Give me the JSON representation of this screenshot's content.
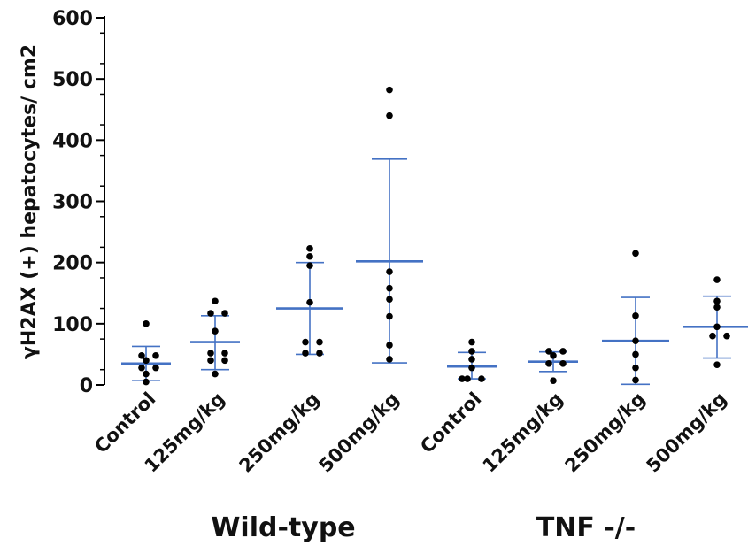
{
  "chart_data": {
    "type": "scatter",
    "ylabel": "γH2AX (+) hepatocytes/ cm2",
    "ylim": [
      0,
      600
    ],
    "yticks": [
      "0",
      "100",
      "200",
      "300",
      "400",
      "500",
      "600"
    ],
    "colors": {
      "mean_bar": "#4472c4",
      "points": "#000000",
      "axis": "#000000"
    },
    "groups": [
      {
        "label": "Wild-type",
        "categories": [
          "Control",
          "125mg/kg",
          "250mg/kg",
          "500mg/kg"
        ]
      },
      {
        "label": "TNF -/-",
        "categories": [
          "Control",
          "125mg/kg",
          "250mg/kg",
          "500mg/kg"
        ]
      }
    ],
    "series": [
      {
        "group": "Wild-type",
        "category": "Control",
        "points": [
          100,
          48,
          48,
          40,
          28,
          28,
          18,
          5
        ],
        "mean": 35,
        "sd_low": 7,
        "sd_high": 63
      },
      {
        "group": "Wild-type",
        "category": "125mg/kg",
        "points": [
          137,
          117,
          117,
          88,
          52,
          52,
          40,
          40,
          18
        ],
        "mean": 70,
        "sd_low": 25,
        "sd_high": 113
      },
      {
        "group": "Wild-type",
        "category": "250mg/kg",
        "points": [
          223,
          210,
          195,
          135,
          70,
          70,
          52,
          52
        ],
        "mean": 125,
        "sd_low": 50,
        "sd_high": 200
      },
      {
        "group": "Wild-type",
        "category": "500mg/kg",
        "points": [
          482,
          440,
          185,
          158,
          140,
          112,
          65,
          42
        ],
        "mean": 202,
        "sd_low": 36,
        "sd_high": 369
      },
      {
        "group": "TNF -/-",
        "category": "Control",
        "points": [
          70,
          55,
          42,
          28,
          10,
          10,
          10
        ],
        "mean": 30,
        "sd_low": 10,
        "sd_high": 53
      },
      {
        "group": "TNF -/-",
        "category": "125mg/kg",
        "points": [
          55,
          55,
          48,
          35,
          35,
          7
        ],
        "mean": 38,
        "sd_low": 22,
        "sd_high": 54
      },
      {
        "group": "TNF -/-",
        "category": "250mg/kg",
        "points": [
          215,
          113,
          72,
          50,
          28,
          8
        ],
        "mean": 72,
        "sd_low": 1,
        "sd_high": 143
      },
      {
        "group": "TNF -/-",
        "category": "500mg/kg",
        "points": [
          172,
          137,
          127,
          95,
          80,
          80,
          33
        ],
        "mean": 95,
        "sd_low": 44,
        "sd_high": 145
      }
    ]
  }
}
